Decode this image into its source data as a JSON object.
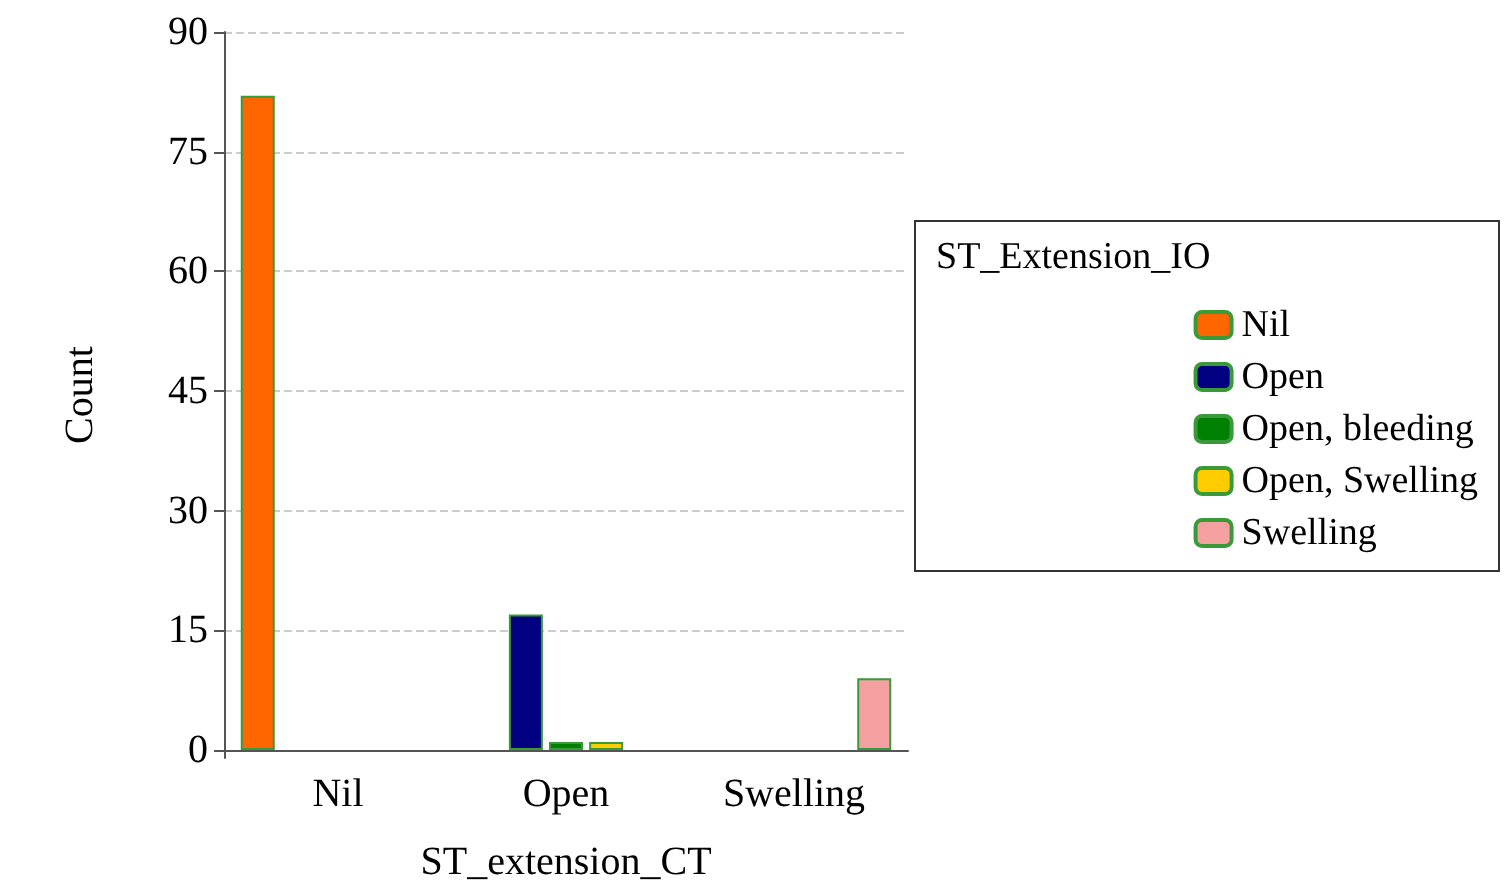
{
  "chart_data": {
    "type": "bar",
    "xlabel": "ST_extension_CT",
    "ylabel": "Count",
    "legend_title": "ST_Extension_IO",
    "categories": [
      "Nil",
      "Open",
      "Swelling"
    ],
    "series": [
      {
        "name": "Nil",
        "color": "#ff6600",
        "values": [
          82,
          null,
          null
        ]
      },
      {
        "name": "Open",
        "color": "#000080",
        "values": [
          null,
          17,
          null
        ]
      },
      {
        "name": "Open, bleeding",
        "color": "#008000",
        "values": [
          null,
          1,
          null
        ]
      },
      {
        "name": "Open, Swelling",
        "color": "#ffcc00",
        "values": [
          null,
          1,
          null
        ]
      },
      {
        "name": "Swelling",
        "color": "#f4a0a0",
        "values": [
          null,
          null,
          9
        ]
      }
    ],
    "ylim": [
      -1,
      90
    ],
    "yticks": [
      0,
      15,
      30,
      45,
      60,
      75,
      90
    ],
    "grid": "y",
    "legend": "right"
  }
}
